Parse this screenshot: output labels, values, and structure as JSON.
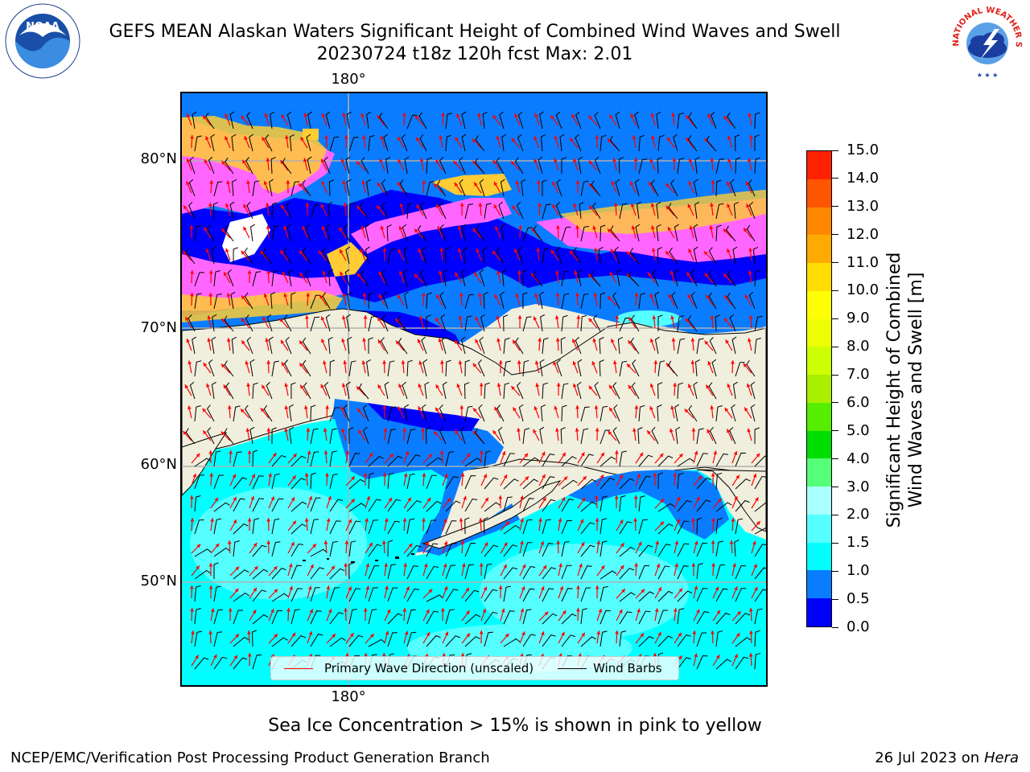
{
  "title_line1": "GEFS MEAN Alaskan Waters Significant Height of Combined Wind Waves and Swell",
  "title_line2": "20230724 t18z 120h fcst   Max: 2.01",
  "noaa_logo_text": "NOAA",
  "nws_logo_text": "NATIONAL WEATHER SERVICE",
  "lon_top": "180°",
  "lon_bottom": "180°",
  "lat_labels": [
    "80°N",
    "70°N",
    "60°N",
    "50°N"
  ],
  "legend": {
    "wave_label": "Primary Wave Direction (unscaled)",
    "wave_color": "#ff0000",
    "wind_label": "Wind Barbs",
    "wind_color": "#000000"
  },
  "colorbar": {
    "label": "Significant Height of Combined Wind Waves and Swell [m]",
    "label_line1": "Significant Height of Combined",
    "label_line2": "Wind Waves and Swell [m]",
    "ticks": [
      "0.0",
      "0.5",
      "1.0",
      "1.5",
      "2.0",
      "3.0",
      "4.0",
      "5.0",
      "6.0",
      "7.0",
      "8.0",
      "9.0",
      "10.0",
      "11.0",
      "12.0",
      "13.0",
      "14.0",
      "15.0"
    ],
    "colors": [
      "#0000ff",
      "#0a7cff",
      "#00ffff",
      "#55ffff",
      "#aaffff",
      "#55ff77",
      "#00dd00",
      "#55ee00",
      "#aaee00",
      "#ccff00",
      "#eeff00",
      "#ffff00",
      "#ffdd00",
      "#ffaa00",
      "#ff8800",
      "#ff5500",
      "#ff2200"
    ]
  },
  "sea_ice_note": "Sea Ice Concentration > 15% is shown in pink to yellow",
  "footer_left": "NCEP/EMC/Verification Post Processing Product Generation Branch",
  "footer_right_date": "26 Jul 2023 on ",
  "footer_right_host": "Hera",
  "colors": {
    "land": "#f0eedc",
    "ocean_main": "#00ffff",
    "ocean_light": "#55ffff",
    "shelf": "#0a7cff",
    "low": "#0000ff",
    "ice_pink": "#ff66ff",
    "ice_yellow": "#ffcc33",
    "grid": "#b0b0b0"
  }
}
